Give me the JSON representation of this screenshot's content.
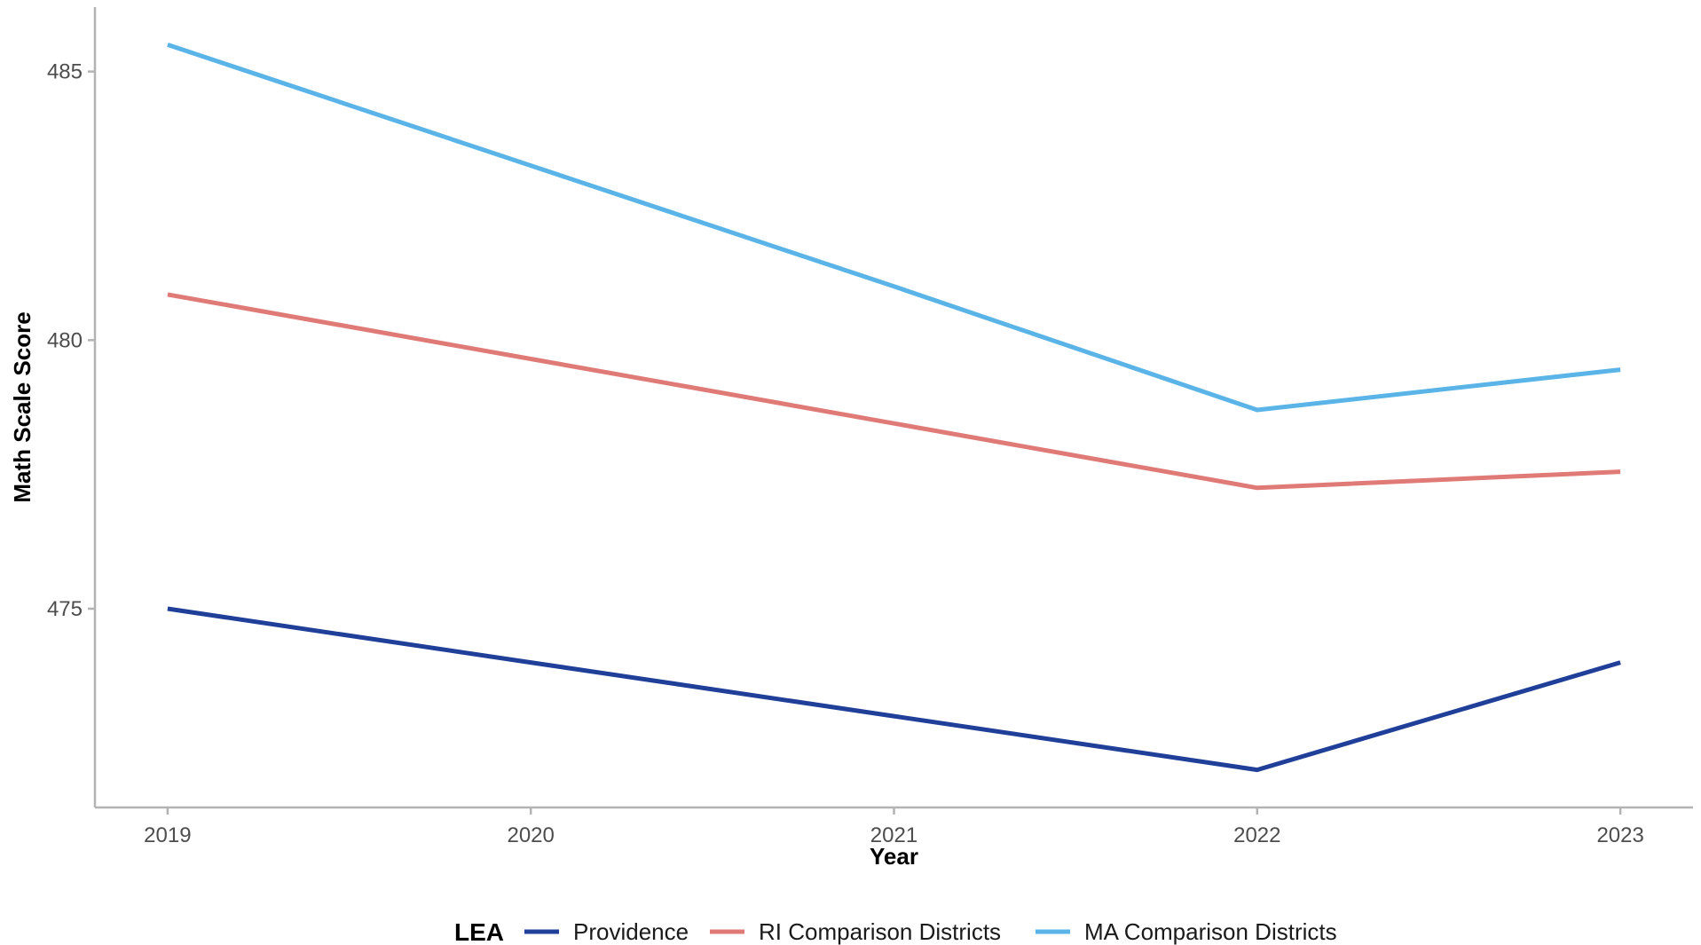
{
  "chart_data": {
    "type": "line",
    "title": "",
    "xlabel": "Year",
    "ylabel": "Math Scale Score",
    "x": [
      2019,
      2020,
      2021,
      2022,
      2023
    ],
    "x_tick_labels": [
      "2019",
      "2020",
      "2021",
      "2022",
      "2023"
    ],
    "y_ticks": [
      475,
      480,
      485
    ],
    "y_tick_labels": [
      "475",
      "480",
      "485"
    ],
    "ylim": [
      471.3,
      486.2
    ],
    "xlim": [
      2018.8,
      2023.2
    ],
    "grid": false,
    "legend": {
      "title": "LEA",
      "position": "bottom"
    },
    "series": [
      {
        "name": "Providence",
        "color": "#1f3f99",
        "values": [
          475.0,
          474.0,
          473.0,
          472.0,
          474.0
        ]
      },
      {
        "name": "RI Comparison Districts",
        "color": "#e07a76",
        "values": [
          480.85,
          479.65,
          478.45,
          477.25,
          477.55
        ]
      },
      {
        "name": "MA Comparison Districts",
        "color": "#5ab4e8",
        "values": [
          485.5,
          483.25,
          481.0,
          478.7,
          479.45
        ]
      }
    ]
  }
}
